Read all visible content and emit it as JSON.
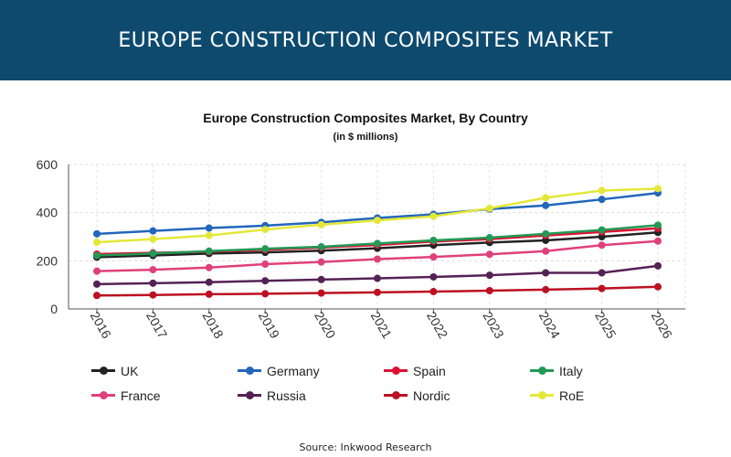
{
  "banner": {
    "title": "EUROPE CONSTRUCTION COMPOSITES MARKET"
  },
  "source": "Source: Inkwood Research",
  "chart_data": {
    "type": "line",
    "title": "Europe Construction Composites Market, By Country",
    "subtitle": "(in $ millions)",
    "xlabel": "",
    "ylabel": "",
    "ylim": [
      0,
      600
    ],
    "yticks": [
      0,
      200,
      400,
      600
    ],
    "grid": true,
    "legend_position": "bottom",
    "categories": [
      "2016",
      "2017",
      "2018",
      "2019",
      "2020",
      "2021",
      "2022",
      "2023",
      "2024",
      "2025",
      "2026"
    ],
    "series": [
      {
        "name": "UK",
        "color": "#222222",
        "values": [
          215,
          222,
          230,
          235,
          242,
          252,
          265,
          276,
          285,
          300,
          318
        ]
      },
      {
        "name": "Germany",
        "color": "#2266bb",
        "values": [
          312,
          324,
          336,
          346,
          360,
          378,
          393,
          415,
          430,
          455,
          482
        ]
      },
      {
        "name": "Spain",
        "color": "#dd1133",
        "values": [
          228,
          233,
          238,
          246,
          255,
          266,
          280,
          290,
          305,
          320,
          335
        ]
      },
      {
        "name": "Italy",
        "color": "#229955",
        "values": [
          222,
          230,
          240,
          250,
          258,
          272,
          285,
          296,
          312,
          328,
          348
        ]
      },
      {
        "name": "France",
        "color": "#e0407a",
        "values": [
          157,
          163,
          172,
          186,
          195,
          207,
          216,
          227,
          240,
          265,
          282
        ]
      },
      {
        "name": "Russia",
        "color": "#552255",
        "values": [
          103,
          107,
          111,
          117,
          122,
          127,
          133,
          140,
          150,
          150,
          179
        ]
      },
      {
        "name": "Nordic",
        "color": "#bb1122",
        "values": [
          56,
          58,
          61,
          63,
          66,
          69,
          72,
          76,
          80,
          85,
          92
        ]
      },
      {
        "name": "RoE",
        "color": "#e3e838",
        "values": [
          277,
          290,
          305,
          330,
          350,
          368,
          385,
          418,
          462,
          492,
          500
        ]
      }
    ]
  }
}
